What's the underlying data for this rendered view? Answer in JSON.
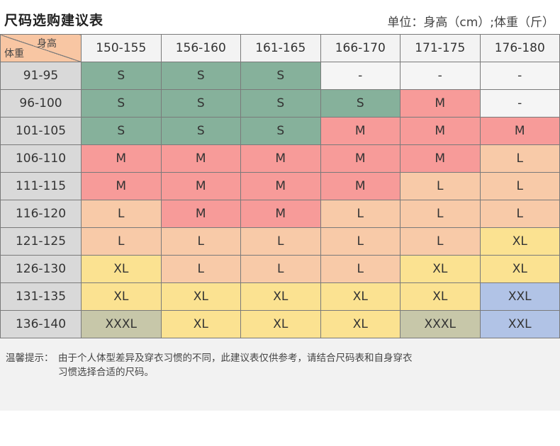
{
  "title": "尺码选购建议表",
  "unit_text": "单位：身高（cm）;体重（斤）",
  "corner": {
    "top": "身高",
    "bottom": "体重"
  },
  "height_ranges": [
    "150-155",
    "156-160",
    "161-165",
    "166-170",
    "171-175",
    "176-180"
  ],
  "rows": [
    {
      "weight": "91-95",
      "sizes": [
        "S",
        "S",
        "S",
        "-",
        "-",
        "-"
      ]
    },
    {
      "weight": "96-100",
      "sizes": [
        "S",
        "S",
        "S",
        "S",
        "M",
        "-"
      ]
    },
    {
      "weight": "101-105",
      "sizes": [
        "S",
        "S",
        "S",
        "M",
        "M",
        "M"
      ]
    },
    {
      "weight": "106-110",
      "sizes": [
        "M",
        "M",
        "M",
        "M",
        "M",
        "L"
      ]
    },
    {
      "weight": "111-115",
      "sizes": [
        "M",
        "M",
        "M",
        "M",
        "L",
        "L"
      ]
    },
    {
      "weight": "116-120",
      "sizes": [
        "L",
        "M",
        "M",
        "L",
        "L",
        "L"
      ]
    },
    {
      "weight": "121-125",
      "sizes": [
        "L",
        "L",
        "L",
        "L",
        "L",
        "XL"
      ]
    },
    {
      "weight": "126-130",
      "sizes": [
        "XL",
        "L",
        "L",
        "L",
        "XL",
        "XL"
      ]
    },
    {
      "weight": "131-135",
      "sizes": [
        "XL",
        "XL",
        "XL",
        "XL",
        "XL",
        "XXL"
      ]
    },
    {
      "weight": "136-140",
      "sizes": [
        "XXXL",
        "XL",
        "XL",
        "XL",
        "XXXL",
        "XXL"
      ]
    }
  ],
  "size_colors": {
    "S": "#86b19b",
    "M": "#f79b99",
    "L": "#f8caa8",
    "XL": "#fbe291",
    "XXL": "#b1c3e6",
    "XXXL": "#c7c7a9",
    "-": "#f5f5f5"
  },
  "note": {
    "label": "温馨提示：",
    "line1": "由于个人体型差异及穿衣习惯的不同，此建议表仅供参考，请结合尺码表和自身穿衣",
    "line2": "习惯选择合适的尺码。"
  }
}
